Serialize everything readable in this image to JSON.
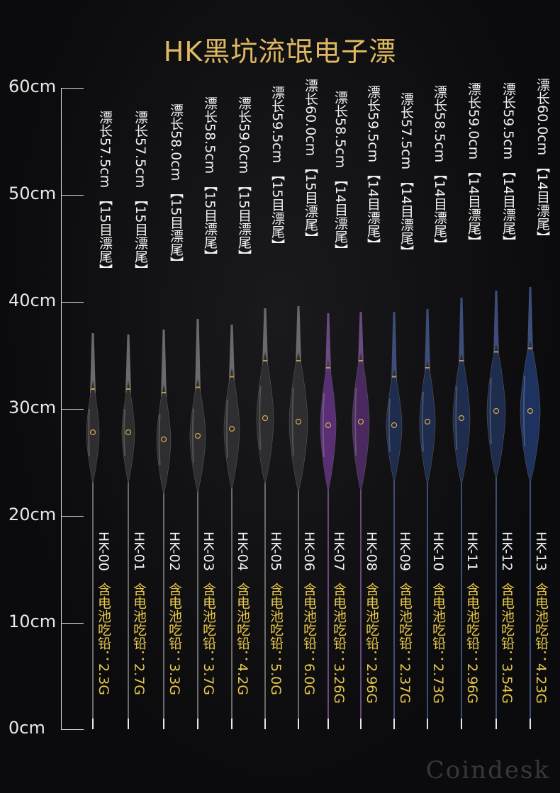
{
  "title": "HK黑坑流氓电子漂",
  "scale": {
    "labels": [
      "60cm",
      "50cm",
      "40cm",
      "30cm",
      "20cm",
      "10cm",
      "0cm"
    ]
  },
  "floats": [
    {
      "model": "HK-00",
      "length": "漂长57.5cm 【15目漂尾】",
      "weight": "含电池吃铅：2.3G",
      "body_color": "#2e2e30",
      "stem_color": "#6a6a6a"
    },
    {
      "model": "HK-01",
      "length": "漂长57.5cm 【15目漂尾】",
      "weight": "含电池吃铅：2.7G",
      "body_color": "#2e2e30",
      "stem_color": "#6a6a6a"
    },
    {
      "model": "HK-02",
      "length": "漂长58.0cm 【15目漂尾】",
      "weight": "含电池吃铅：3.3G",
      "body_color": "#2e2e30",
      "stem_color": "#6a6a6a"
    },
    {
      "model": "HK-03",
      "length": "漂长58.5cm 【15目漂尾】",
      "weight": "含电池吃铅：3.7G",
      "body_color": "#2e2e30",
      "stem_color": "#6a6a6a"
    },
    {
      "model": "HK-04",
      "length": "漂长59.0cm 【15目漂尾】",
      "weight": "含电池吃铅：4.2G",
      "body_color": "#2e2e30",
      "stem_color": "#6a6a6a"
    },
    {
      "model": "HK-05",
      "length": "漂长59.5cm 【15目漂尾】",
      "weight": "含电池吃铅：5.0G",
      "body_color": "#2e2e30",
      "stem_color": "#6a6a6a"
    },
    {
      "model": "HK-06",
      "length": "漂长60.0cm 【15目漂尾】",
      "weight": "含电池吃铅：6.0G",
      "body_color": "#2e2e30",
      "stem_color": "#6a6a6a"
    },
    {
      "model": "HK-07",
      "length": "漂长58.5cm 【14目漂尾】",
      "weight": "含电池吃铅：3.26G",
      "body_color": "#5a2e74",
      "stem_color": "#6a4a80"
    },
    {
      "model": "HK-08",
      "length": "漂长59.5cm 【14目漂尾】",
      "weight": "含电池吃铅：2.96G",
      "body_color": "#4a2a5e",
      "stem_color": "#6a4a80"
    },
    {
      "model": "HK-09",
      "length": "漂长57.5cm 【14目漂尾】",
      "weight": "含电池吃铅：2.37G",
      "body_color": "#1e2c4e",
      "stem_color": "#3d4d7a"
    },
    {
      "model": "HK-10",
      "length": "漂长58.5cm 【14目漂尾】",
      "weight": "含电池吃铅：2.73G",
      "body_color": "#1e2c4e",
      "stem_color": "#3d4d7a"
    },
    {
      "model": "HK-11",
      "length": "漂长59.0cm 【14目漂尾】",
      "weight": "含电池吃铅：2.96G",
      "body_color": "#1e2c4e",
      "stem_color": "#3d4d7a"
    },
    {
      "model": "HK-12",
      "length": "漂长59.5cm 【14目漂尾】",
      "weight": "含电池吃铅：3.54G",
      "body_color": "#1e2c4e",
      "stem_color": "#3d4d7a"
    },
    {
      "model": "HK-13",
      "length": "漂长60.0cm 【14目漂尾】",
      "weight": "含电池吃铅：4.23G",
      "body_color": "#1e3260",
      "stem_color": "#3d4d7a"
    }
  ],
  "watermark": "Coindesk"
}
